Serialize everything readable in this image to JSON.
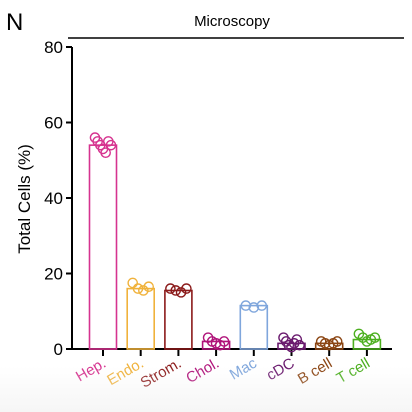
{
  "panel_label": "N",
  "chart_data": {
    "type": "bar",
    "title": "Microscopy",
    "xlabel": "",
    "ylabel": "Total Cells (%)",
    "ylim": [
      0,
      80
    ],
    "yticks": [
      0,
      20,
      40,
      60,
      80
    ],
    "grid": false,
    "categories": [
      "Hep.",
      "Endo.",
      "Strom.",
      "Chol.",
      "Mac",
      "cDC",
      "B cell",
      "T cell"
    ],
    "values": [
      54,
      16,
      15.5,
      2,
      11.5,
      1.5,
      1.5,
      2.5
    ],
    "points": [
      [
        56,
        55,
        54,
        53,
        52,
        55,
        54
      ],
      [
        17.5,
        16,
        15.5,
        16.5
      ],
      [
        16,
        15.5,
        15,
        16
      ],
      [
        3,
        2,
        1.5,
        1,
        2
      ],
      [
        11.5,
        11,
        11.5
      ],
      [
        3,
        2,
        1,
        0.5,
        1.5,
        2.5,
        1
      ],
      [
        2,
        1.5,
        1,
        1.5,
        2
      ],
      [
        4,
        3,
        2,
        2.5,
        3
      ]
    ],
    "colors": [
      "#d6338f",
      "#f0b23b",
      "#8b1a1a",
      "#b0137a",
      "#7fa6dc",
      "#6a1a6e",
      "#8b4513",
      "#4caf1f"
    ]
  }
}
